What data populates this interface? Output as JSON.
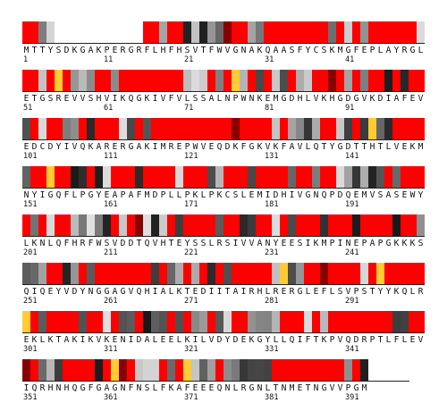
{
  "chart_data": {
    "type": "heatmap",
    "residues_per_row": 50,
    "rows": [
      {
        "start": 1,
        "sequence": "MTTYSDKGAKPERGRFLHFHSVTFWVGNAKQAASFYCSKMGFEPLAYRGL"
      },
      {
        "start": 51,
        "sequence": "ETGSREVVSHVIKQGKIVFVLSSALNPWNKEMGDHLVKHGDGVKDIAFEV"
      },
      {
        "start": 101,
        "sequence": "EDCDYIVQKARERGAKIMREPWVEQDKFGKVKFAVLQTYGDTTHTLVEKM"
      },
      {
        "start": 151,
        "sequence": "NYIGQFLPGYEAPAFMDPLLPKLPKCSLEMIDHIVGNQPDQEMVSASEWY"
      },
      {
        "start": 201,
        "sequence": "LKNLQFHRFWSVDDTQVHTEYSSLRSIVVANYEESIKMPINEPAPGKKKS"
      },
      {
        "start": 251,
        "sequence": "QIQEYVDYNGGAGVQHIALKTEDIITAIRHLRERGLEFLSVPSTYYKQLR"
      },
      {
        "start": 301,
        "sequence": "EKLKTAKIKVKENIDALEELKILVDYDEKGYLLQIFTKPVQDRPTLFLEV"
      },
      {
        "start": 351,
        "sequence": "IQRHNHQGFGAGNFNSLFKAFEEEQNLRGNLTNMETNGVVPGM"
      }
    ],
    "colors": {
      "high": "#ff0000",
      "mid": "#ffcc33",
      "dark_red": "#880000",
      "gap": "#ffffff"
    }
  }
}
